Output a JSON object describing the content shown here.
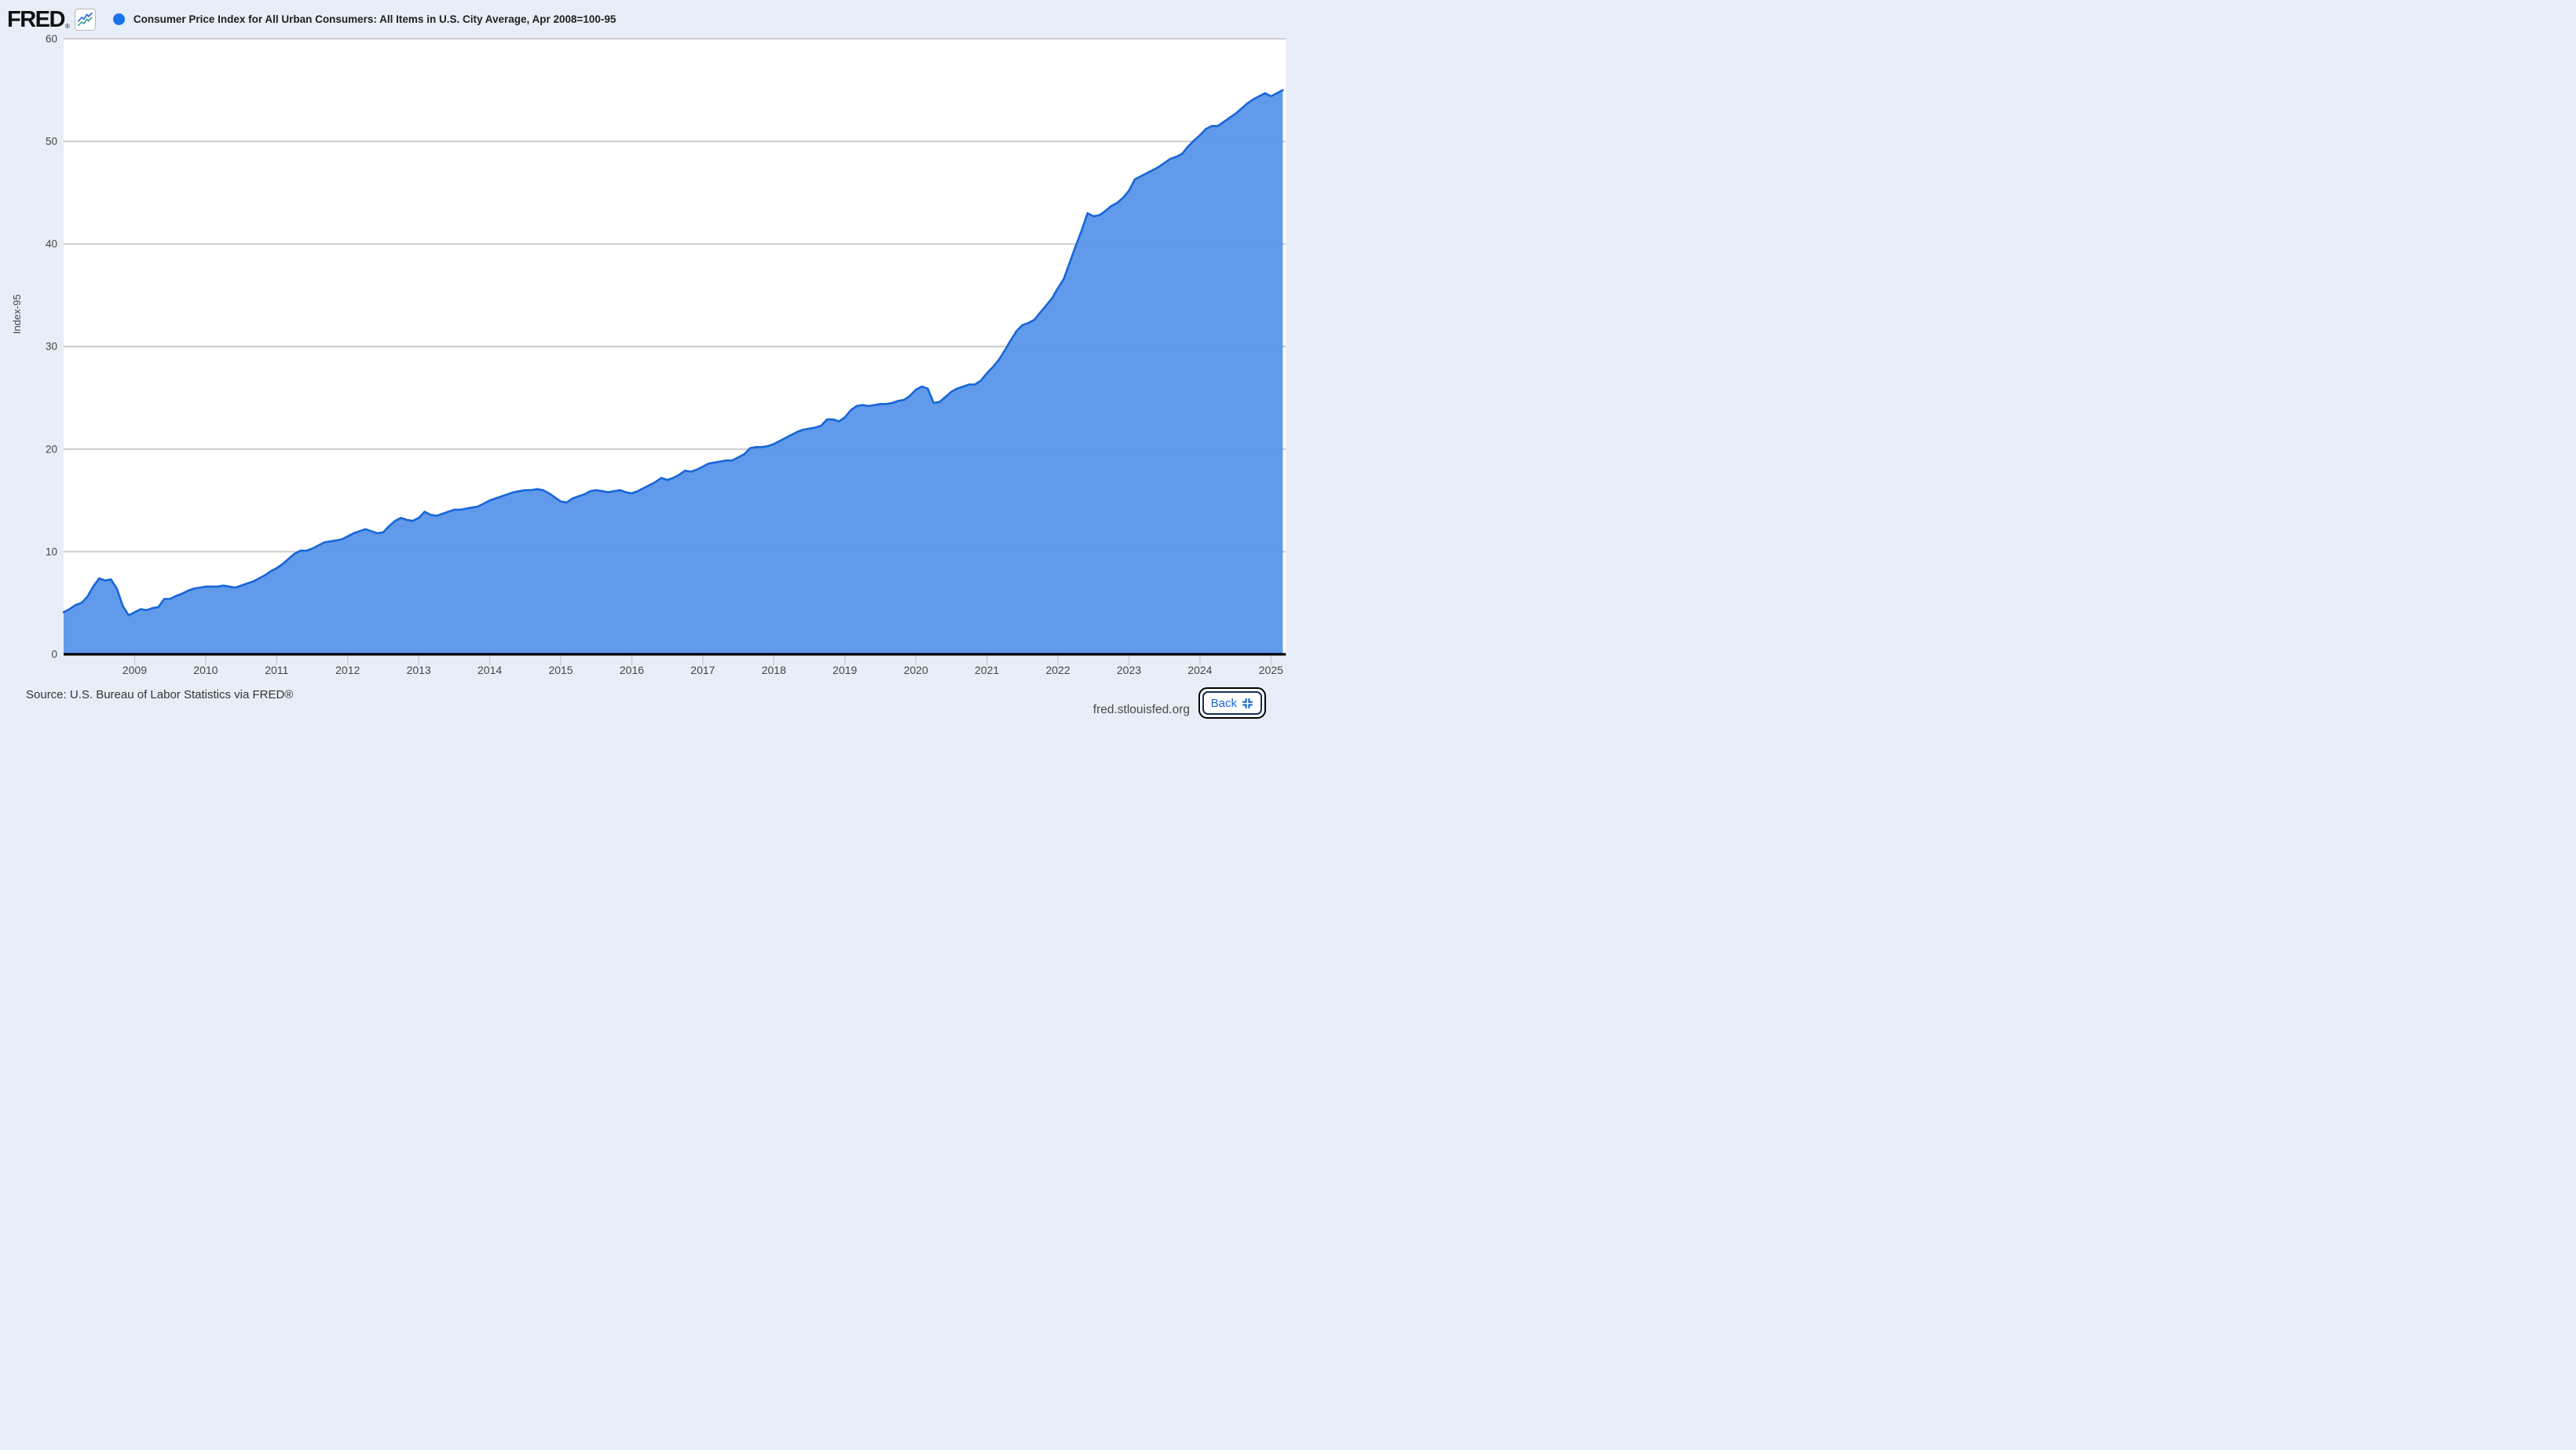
{
  "header": {
    "logo_text": "FRED",
    "logo_registered": "®",
    "title": "Consumer Price Index for All Urban Consumers: All Items in U.S. City Average, Apr 2008=100-95"
  },
  "footer": {
    "source": "Source: U.S. Bureau of Labor Statistics via FRED®",
    "site": "fred.stlouisfed.org",
    "back_label": "Back"
  },
  "colors": {
    "page_bg": "#e8eef8",
    "plot_bg": "#ffffff",
    "grid": "#c7c7c7",
    "axis": "#000000",
    "tick": "#c3cfe6",
    "axis_text": "#444444",
    "line": "#1766d8",
    "fill": "#5995ea",
    "legend_dot": "#1a73e8",
    "logo_line_blue": "#2d6fdb",
    "logo_line_teal": "#2f9e8f",
    "back_blue": "#1b66cf",
    "back_border": "#0f3057"
  },
  "chart_data": {
    "type": "area",
    "title": "Consumer Price Index for All Urban Consumers: All Items in U.S. City Average, Apr 2008=100-95",
    "xlabel": "",
    "ylabel": "Index-95",
    "ylim": [
      0,
      60
    ],
    "y_ticks": [
      0,
      10,
      20,
      30,
      40,
      50,
      60
    ],
    "x_tick_years": [
      2009,
      2010,
      2011,
      2012,
      2013,
      2014,
      2015,
      2016,
      2017,
      2018,
      2019,
      2020,
      2021,
      2022,
      2023,
      2024,
      2025
    ],
    "grid": "horizontal",
    "legend_position": "top",
    "frequency": "monthly",
    "x_start": "2008-01",
    "x_end": "2025-03",
    "series": [
      {
        "name": "Consumer Price Index for All Urban Consumers: All Items in U.S. City Average, Apr 2008=100-95",
        "values": [
          4.1,
          4.4,
          4.8,
          5.0,
          5.6,
          6.6,
          7.4,
          7.2,
          7.3,
          6.4,
          4.7,
          3.8,
          4.1,
          4.4,
          4.3,
          4.5,
          4.6,
          5.4,
          5.4,
          5.7,
          5.9,
          6.2,
          6.4,
          6.5,
          6.6,
          6.6,
          6.6,
          6.7,
          6.6,
          6.5,
          6.7,
          6.9,
          7.1,
          7.4,
          7.7,
          8.1,
          8.4,
          8.8,
          9.3,
          9.8,
          10.1,
          10.1,
          10.3,
          10.6,
          10.9,
          11.0,
          11.1,
          11.2,
          11.5,
          11.8,
          12.0,
          12.2,
          12.0,
          11.8,
          11.9,
          12.5,
          13.0,
          13.3,
          13.1,
          13.0,
          13.3,
          13.9,
          13.6,
          13.5,
          13.7,
          13.9,
          14.1,
          14.1,
          14.2,
          14.3,
          14.4,
          14.7,
          15.0,
          15.2,
          15.4,
          15.6,
          15.8,
          15.9,
          16.0,
          16.0,
          16.1,
          16.0,
          15.7,
          15.3,
          14.9,
          14.8,
          15.2,
          15.4,
          15.6,
          15.9,
          16.0,
          15.9,
          15.8,
          15.9,
          16.0,
          15.8,
          15.7,
          15.9,
          16.2,
          16.5,
          16.8,
          17.2,
          17.0,
          17.2,
          17.5,
          17.9,
          17.8,
          18.0,
          18.3,
          18.6,
          18.7,
          18.8,
          18.9,
          18.9,
          19.2,
          19.5,
          20.1,
          20.2,
          20.2,
          20.3,
          20.5,
          20.8,
          21.1,
          21.4,
          21.7,
          21.9,
          22.0,
          22.1,
          22.3,
          22.9,
          22.9,
          22.7,
          23.1,
          23.8,
          24.2,
          24.3,
          24.2,
          24.3,
          24.4,
          24.4,
          24.5,
          24.7,
          24.8,
          25.2,
          25.8,
          26.1,
          25.9,
          24.5,
          24.6,
          25.1,
          25.6,
          25.9,
          26.1,
          26.3,
          26.3,
          26.7,
          27.4,
          28.0,
          28.7,
          29.6,
          30.6,
          31.5,
          32.1,
          32.3,
          32.6,
          33.3,
          34.0,
          34.7,
          35.7,
          36.6,
          38.2,
          39.8,
          41.3,
          43.0,
          42.7,
          42.8,
          43.2,
          43.7,
          44.0,
          44.5,
          45.2,
          46.3,
          46.6,
          46.9,
          47.2,
          47.5,
          47.9,
          48.3,
          48.5,
          48.8,
          49.5,
          50.1,
          50.6,
          51.2,
          51.5,
          51.5,
          51.9,
          52.3,
          52.7,
          53.2,
          53.7,
          54.1,
          54.4,
          54.7,
          54.4,
          54.7,
          55.0
        ]
      }
    ]
  }
}
